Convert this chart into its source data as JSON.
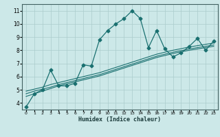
{
  "xlabel": "Humidex (Indice chaleur)",
  "ylabel": "",
  "background_color": "#cce8e8",
  "grid_color": "#aacccc",
  "line_color": "#1a7070",
  "xlim": [
    -0.5,
    23.5
  ],
  "ylim": [
    3.5,
    11.5
  ],
  "xticks": [
    0,
    1,
    2,
    3,
    4,
    5,
    6,
    7,
    8,
    9,
    10,
    11,
    12,
    13,
    14,
    15,
    16,
    17,
    18,
    19,
    20,
    21,
    22,
    23
  ],
  "yticks": [
    4,
    5,
    6,
    7,
    8,
    9,
    10,
    11
  ],
  "series": [
    {
      "x": [
        0,
        1,
        2,
        3,
        4,
        5,
        6,
        7,
        8,
        9,
        10,
        11,
        12,
        13,
        14,
        15,
        16,
        17,
        18,
        19,
        20,
        21,
        22,
        23
      ],
      "y": [
        3.7,
        4.7,
        5.0,
        6.5,
        5.3,
        5.3,
        5.5,
        6.9,
        6.8,
        8.8,
        9.5,
        10.0,
        10.4,
        11.0,
        10.4,
        8.2,
        9.5,
        8.1,
        7.5,
        7.8,
        8.3,
        8.9,
        8.0,
        8.7
      ],
      "marker": "D",
      "markersize": 2.5,
      "linewidth": 0.9
    },
    {
      "x": [
        0,
        1,
        2,
        3,
        4,
        5,
        6,
        7,
        8,
        9,
        10,
        11,
        12,
        13,
        14,
        15,
        16,
        17,
        18,
        19,
        20,
        21,
        22,
        23
      ],
      "y": [
        4.5,
        4.7,
        4.9,
        5.1,
        5.3,
        5.45,
        5.6,
        5.75,
        5.9,
        6.05,
        6.25,
        6.45,
        6.65,
        6.85,
        7.05,
        7.25,
        7.45,
        7.6,
        7.75,
        7.88,
        8.0,
        8.1,
        8.2,
        8.3
      ],
      "marker": null,
      "markersize": 0,
      "linewidth": 0.8
    },
    {
      "x": [
        0,
        1,
        2,
        3,
        4,
        5,
        6,
        7,
        8,
        9,
        10,
        11,
        12,
        13,
        14,
        15,
        16,
        17,
        18,
        19,
        20,
        21,
        22,
        23
      ],
      "y": [
        4.7,
        4.9,
        5.05,
        5.2,
        5.4,
        5.55,
        5.7,
        5.85,
        6.0,
        6.15,
        6.35,
        6.55,
        6.75,
        6.95,
        7.15,
        7.35,
        7.55,
        7.7,
        7.85,
        7.97,
        8.1,
        8.2,
        8.3,
        8.4
      ],
      "marker": null,
      "markersize": 0,
      "linewidth": 0.8
    },
    {
      "x": [
        0,
        1,
        2,
        3,
        4,
        5,
        6,
        7,
        8,
        9,
        10,
        11,
        12,
        13,
        14,
        15,
        16,
        17,
        18,
        19,
        20,
        21,
        22,
        23
      ],
      "y": [
        4.9,
        5.05,
        5.2,
        5.4,
        5.55,
        5.7,
        5.85,
        6.0,
        6.15,
        6.3,
        6.5,
        6.7,
        6.9,
        7.1,
        7.3,
        7.5,
        7.7,
        7.85,
        8.0,
        8.12,
        8.25,
        8.35,
        8.45,
        8.55
      ],
      "marker": null,
      "markersize": 0,
      "linewidth": 0.8
    }
  ]
}
